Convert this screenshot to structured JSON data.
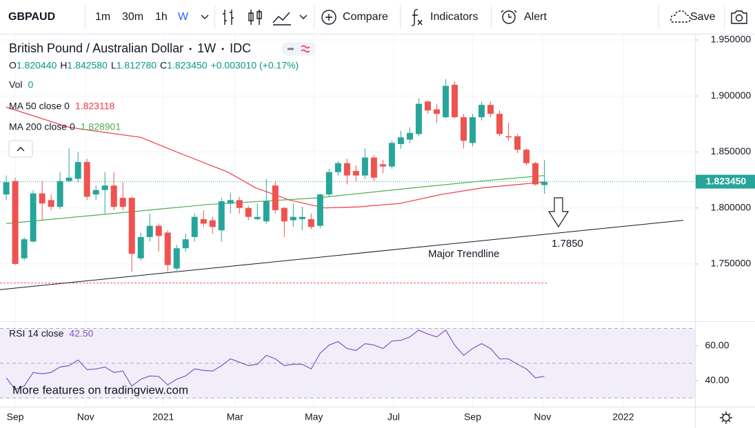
{
  "toolbar": {
    "symbol": "GBPAUD",
    "intervals": [
      "1m",
      "30m",
      "1h",
      "W"
    ],
    "buttons": [
      "Compare",
      "Indicators",
      "Alert",
      "Save"
    ]
  },
  "legend": {
    "title": "British Pound / Australian Dollar",
    "interval": "1W",
    "source": "IDC",
    "ohlc_prefixes": [
      "O",
      "H",
      "L",
      "C"
    ],
    "ohlc_value_labels": [
      "1.820440",
      "1.842580",
      "1.812780",
      "1.823450"
    ],
    "change": "+0.003010 (+0.17%)",
    "vol_label": "Vol",
    "vol_value": 0
  },
  "chart_data": {
    "type": "candlestick",
    "ylim": [
      1.6995,
      1.9549
    ],
    "yticks": [
      {
        "value": 1.95,
        "label": "1.950000"
      },
      {
        "value": 1.9,
        "label": "1.900000"
      },
      {
        "value": 1.85,
        "label": "1.850000"
      },
      {
        "value": 1.8,
        "label": "1.800000"
      },
      {
        "value": 1.75,
        "label": "1.750000"
      }
    ],
    "xlim": [
      -0.7,
      76.8
    ],
    "xticks": [
      {
        "value": 1,
        "label": "Sep"
      },
      {
        "value": 8.85,
        "label": "Nov"
      },
      {
        "value": 17.5,
        "label": "2021"
      },
      {
        "value": 25.5,
        "label": "Mar"
      },
      {
        "value": 34.3,
        "label": "May"
      },
      {
        "value": 43.2,
        "label": "Jul"
      },
      {
        "value": 52,
        "label": "Sep"
      },
      {
        "value": 59.8,
        "label": "Nov"
      },
      {
        "value": 68.8,
        "label": "2022"
      }
    ],
    "grid": true,
    "up_color": "#26a69a",
    "down_color": "#ef5350",
    "open": [
      1.812,
      1.824,
      1.755,
      1.77,
      1.813,
      1.807,
      1.801,
      1.824,
      1.826,
      1.841,
      1.812,
      1.816,
      1.82,
      1.809,
      1.809,
      1.755,
      1.774,
      1.784,
      1.778,
      1.746,
      1.764,
      1.774,
      1.79,
      1.789,
      1.78,
      1.804,
      1.807,
      1.8,
      1.79,
      1.788,
      1.82,
      1.8,
      1.789,
      1.79,
      1.79,
      1.784,
      1.812,
      1.832,
      1.84,
      1.833,
      1.829,
      1.845,
      1.839,
      1.837,
      1.857,
      1.861,
      1.866,
      1.895,
      1.888,
      1.881,
      1.91,
      1.881,
      1.858,
      1.881,
      1.892,
      1.884,
      1.864,
      1.864,
      1.852,
      1.84,
      1.82044
    ],
    "high": [
      1.829,
      1.827,
      1.774,
      1.816,
      1.824,
      1.812,
      1.832,
      1.853,
      1.85,
      1.844,
      1.82,
      1.832,
      1.832,
      1.823,
      1.81,
      1.778,
      1.795,
      1.786,
      1.78,
      1.767,
      1.777,
      1.795,
      1.798,
      1.792,
      1.809,
      1.813,
      1.81,
      1.802,
      1.804,
      1.826,
      1.824,
      1.801,
      1.804,
      1.801,
      1.795,
      1.813,
      1.835,
      1.842,
      1.844,
      1.838,
      1.853,
      1.847,
      1.843,
      1.86,
      1.869,
      1.872,
      1.898,
      1.896,
      1.893,
      1.915,
      1.913,
      1.884,
      1.884,
      1.895,
      1.895,
      1.887,
      1.876,
      1.866,
      1.853,
      1.841,
      1.84258
    ],
    "low": [
      1.807,
      1.749,
      1.753,
      1.769,
      1.789,
      1.798,
      1.799,
      1.823,
      1.823,
      1.807,
      1.807,
      1.795,
      1.798,
      1.798,
      1.743,
      1.753,
      1.77,
      1.761,
      1.743,
      1.744,
      1.761,
      1.77,
      1.783,
      1.777,
      1.77,
      1.795,
      1.795,
      1.789,
      1.789,
      1.786,
      1.795,
      1.774,
      1.783,
      1.78,
      1.781,
      1.782,
      1.81,
      1.829,
      1.821,
      1.823,
      1.826,
      1.824,
      1.831,
      1.835,
      1.853,
      1.858,
      1.864,
      1.884,
      1.876,
      1.88,
      1.88,
      1.853,
      1.855,
      1.878,
      1.881,
      1.864,
      1.86,
      1.849,
      1.838,
      1.82,
      1.81278
    ],
    "close": [
      1.823,
      1.75,
      1.772,
      1.813,
      1.804,
      1.801,
      1.824,
      1.827,
      1.841,
      1.81,
      1.816,
      1.82,
      1.801,
      1.801,
      1.759,
      1.774,
      1.784,
      1.775,
      1.749,
      1.764,
      1.772,
      1.792,
      1.786,
      1.783,
      1.806,
      1.807,
      1.8,
      1.792,
      1.792,
      1.806,
      1.798,
      1.788,
      1.792,
      1.792,
      1.783,
      1.812,
      1.832,
      1.84,
      1.829,
      1.829,
      1.845,
      1.827,
      1.837,
      1.858,
      1.863,
      1.867,
      1.893,
      1.887,
      1.884,
      1.909,
      1.881,
      1.86,
      1.881,
      1.892,
      1.884,
      1.866,
      1.863,
      1.852,
      1.84,
      1.821,
      1.82345
    ],
    "ma": [
      {
        "name": "MA 50 close 0",
        "color": "#f23645",
        "x": [
          0,
          7,
          15,
          19,
          24.7,
          27.8,
          31.6,
          35.5,
          39.3,
          43.9,
          48.5,
          53.2,
          60
        ],
        "values": [
          1.89,
          1.872,
          1.863,
          1.85,
          1.832,
          1.818,
          1.807,
          1.8,
          1.801,
          1.804,
          1.812,
          1.818,
          1.823118
        ]
      },
      {
        "name": "MA 200 close 0",
        "color": "#4caf50",
        "x": [
          0,
          22.4,
          34.7,
          45.5,
          53,
          60
        ],
        "values": [
          1.786,
          1.803,
          1.809,
          1.818,
          1.824,
          1.828901
        ]
      }
    ],
    "trendline": {
      "x": [
        -0.7,
        75.5
      ],
      "values": [
        1.727,
        1.789
      ],
      "color": "#131722"
    },
    "marker_line": {
      "value": 1.733,
      "x_end": 60.3,
      "color": "#ef5350"
    },
    "annotations": [
      "Major Trendline",
      "1.7850"
    ],
    "rsi": {
      "name": "RSI 14 close",
      "color": "#7e57c2",
      "ylim": [
        25.1,
        73.7
      ],
      "yticks": [
        {
          "value": 60,
          "label": "60.00"
        },
        {
          "value": 40,
          "label": "40.00"
        }
      ],
      "bands": [
        30,
        50,
        70
      ],
      "values": [
        41.6,
        34.9,
        36.9,
        44.7,
        43.9,
        44.7,
        47.8,
        48.6,
        51.8,
        46.3,
        46.7,
        47.8,
        44.7,
        45.5,
        36.9,
        40.8,
        42.7,
        42.4,
        37.6,
        40.8,
        42.7,
        46.7,
        45.9,
        45.5,
        48.6,
        52.5,
        50.6,
        48.6,
        49.4,
        54.5,
        52.5,
        48.6,
        49.4,
        49.4,
        46.7,
        55.7,
        60.4,
        62.4,
        58.4,
        57.3,
        61.2,
        60.4,
        58.4,
        62.7,
        63.1,
        65.1,
        69.0,
        66.7,
        65.1,
        69.0,
        60.4,
        54.5,
        58.4,
        61.2,
        58.4,
        52.5,
        52.5,
        49.4,
        46.7,
        41.6,
        42.5
      ],
      "value_label": "42.50"
    },
    "watermark": "More features on tradingview.com"
  }
}
